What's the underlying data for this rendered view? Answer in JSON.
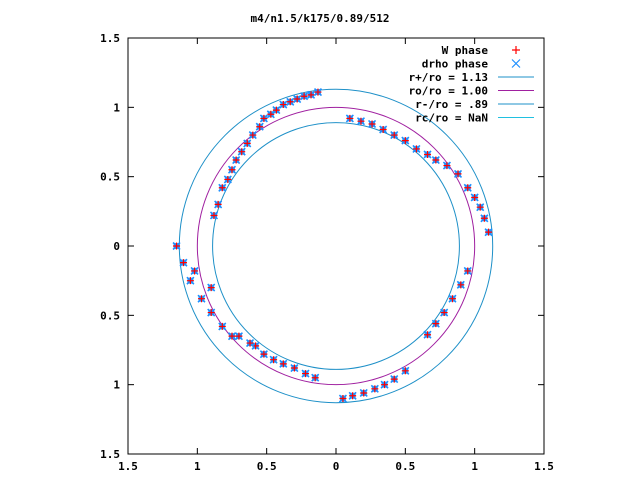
{
  "chart_data": {
    "type": "scatter",
    "title": "m4/n1.5/k175/0.89/512",
    "xlabel": "",
    "ylabel": "",
    "xlim": [
      -1.5,
      1.5
    ],
    "ylim": [
      -1.5,
      1.5
    ],
    "x_tick_values": [
      -1.5,
      -1,
      -0.5,
      0,
      0.5,
      1,
      1.5
    ],
    "x_tick_labels": [
      "1.5",
      "1",
      "0.5",
      "0",
      "0.5",
      "1",
      "1.5"
    ],
    "y_tick_values": [
      -1.5,
      -1,
      -0.5,
      0,
      0.5,
      1,
      1.5
    ],
    "y_tick_labels": [
      "1.5",
      "1",
      "0.5",
      "0",
      "0.5",
      "1",
      "1.5"
    ],
    "grid": false,
    "legend_position": "top-right",
    "series": [
      {
        "name": "W phase",
        "kind": "points",
        "marker": "plus",
        "color": "#ff0000",
        "data_ref": "phase_points"
      },
      {
        "name": "drho phase",
        "kind": "points",
        "marker": "cross",
        "color": "#1e90ff",
        "data_ref": "phase_points"
      },
      {
        "name": "r+/ro = 1.13",
        "kind": "circle",
        "radius": 1.13,
        "color": "#1e90c8"
      },
      {
        "name": "ro/ro = 1.00",
        "kind": "circle",
        "radius": 1.0,
        "color": "#a020a0"
      },
      {
        "name": "r-/ro = .89",
        "kind": "circle",
        "radius": 0.89,
        "color": "#1e90c8"
      },
      {
        "name": "rc/ro = NaN",
        "kind": "circle",
        "radius": null,
        "color": "#20c0e0"
      }
    ],
    "phase_points": [
      [
        -0.47,
        0.95
      ],
      [
        -0.43,
        0.98
      ],
      [
        -0.38,
        1.02
      ],
      [
        -0.33,
        1.04
      ],
      [
        -0.28,
        1.06
      ],
      [
        -0.23,
        1.08
      ],
      [
        -0.18,
        1.09
      ],
      [
        -0.13,
        1.11
      ],
      [
        -0.6,
        0.8
      ],
      [
        -0.64,
        0.74
      ],
      [
        -0.68,
        0.68
      ],
      [
        -0.72,
        0.62
      ],
      [
        -0.75,
        0.55
      ],
      [
        -0.78,
        0.48
      ],
      [
        -0.82,
        0.42
      ],
      [
        -0.85,
        0.3
      ],
      [
        -0.88,
        0.22
      ],
      [
        0.1,
        0.92
      ],
      [
        0.18,
        0.9
      ],
      [
        0.26,
        0.88
      ],
      [
        0.34,
        0.84
      ],
      [
        0.42,
        0.8
      ],
      [
        0.5,
        0.76
      ],
      [
        0.58,
        0.7
      ],
      [
        0.66,
        0.66
      ],
      [
        0.72,
        0.62
      ],
      [
        0.8,
        0.58
      ],
      [
        0.88,
        0.52
      ],
      [
        0.95,
        0.42
      ],
      [
        1.0,
        0.35
      ],
      [
        1.04,
        0.28
      ],
      [
        1.07,
        0.2
      ],
      [
        1.1,
        0.1
      ],
      [
        0.95,
        -0.18
      ],
      [
        0.9,
        -0.28
      ],
      [
        0.84,
        -0.38
      ],
      [
        0.78,
        -0.48
      ],
      [
        0.72,
        -0.56
      ],
      [
        0.66,
        -0.64
      ],
      [
        0.5,
        -0.9
      ],
      [
        0.42,
        -0.96
      ],
      [
        0.35,
        -1.0
      ],
      [
        0.28,
        -1.03
      ],
      [
        0.2,
        -1.06
      ],
      [
        0.12,
        -1.08
      ],
      [
        0.05,
        -1.1
      ],
      [
        -0.15,
        -0.95
      ],
      [
        -0.22,
        -0.92
      ],
      [
        -0.3,
        -0.88
      ],
      [
        -0.38,
        -0.85
      ],
      [
        -0.45,
        -0.82
      ],
      [
        -0.52,
        -0.78
      ],
      [
        -0.58,
        -0.72
      ],
      [
        -0.75,
        -0.65
      ],
      [
        -0.82,
        -0.58
      ],
      [
        -0.9,
        -0.48
      ],
      [
        -0.97,
        -0.38
      ],
      [
        -1.05,
        -0.25
      ],
      [
        -1.1,
        -0.12
      ],
      [
        -1.15,
        0.0
      ],
      [
        -0.7,
        -0.65
      ],
      [
        -0.62,
        -0.7
      ],
      [
        -0.9,
        -0.3
      ],
      [
        -1.02,
        -0.18
      ],
      [
        -0.52,
        0.92
      ],
      [
        -0.55,
        0.86
      ]
    ]
  }
}
